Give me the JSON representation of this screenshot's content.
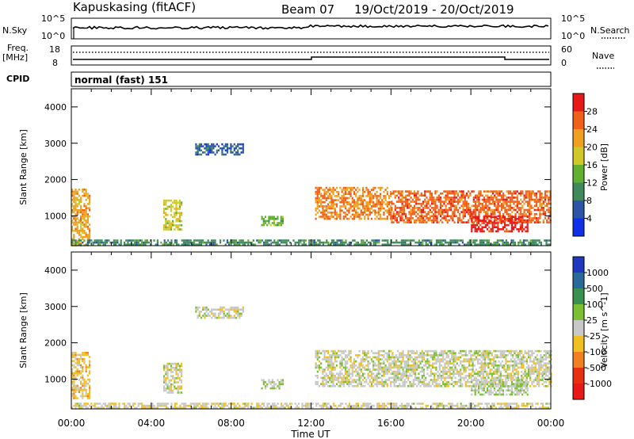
{
  "header": {
    "station": "Kapuskasing (fitACF)",
    "beam": "Beam 07",
    "date_range": "19/Oct/2019 - 20/Oct/2019"
  },
  "noise_panel": {
    "left_label": "N.Sky",
    "right_label": "N.Search",
    "left_tick_top": "10^5",
    "left_tick_bottom": "10^0",
    "right_tick_top": "10^5",
    "right_tick_bottom": "10^0"
  },
  "freq_panel": {
    "left_label_line1": "Freq.",
    "left_label_line2": "[MHz]",
    "right_label": "Nave",
    "left_tick_top": "18",
    "left_tick_bottom": "8",
    "right_tick_top": "60",
    "right_tick_bottom": "0"
  },
  "cpid_panel": {
    "label": "CPID",
    "text": "normal (fast) 151"
  },
  "x_axis": {
    "label": "Time UT",
    "ticks": [
      "00:00",
      "04:00",
      "08:00",
      "12:00",
      "16:00",
      "20:00",
      "00:00"
    ]
  },
  "colors": {
    "power_scale": [
      "#1030e8",
      "#2c55a8",
      "#3f8a5a",
      "#62b030",
      "#d0c828",
      "#f0a020",
      "#f06018",
      "#e81818"
    ],
    "velocity_scale": [
      "#2038c0",
      "#2a6a9a",
      "#3a9050",
      "#7ac030",
      "#c8c8c8",
      "#f0c020",
      "#f08020",
      "#e83010",
      "#e81818"
    ]
  },
  "chart_data": [
    {
      "type": "heatmap",
      "name": "power",
      "ylabel": "Slant Range [km]",
      "xlabel": "",
      "yticks": [
        "1000",
        "2000",
        "3000",
        "4000"
      ],
      "ylim": [
        180,
        4500
      ],
      "xlim": [
        0,
        24
      ],
      "colorbar": {
        "label": "Power [dB]",
        "ticks": [
          "4",
          "8",
          "12",
          "16",
          "20",
          "24",
          "28"
        ],
        "range": [
          0,
          32
        ]
      },
      "regions": [
        {
          "t0": 0.0,
          "t1": 0.9,
          "r0": 180,
          "r1": 1750,
          "value": 22
        },
        {
          "t0": 0.0,
          "t1": 24.0,
          "r0": 180,
          "r1": 350,
          "value": 10
        },
        {
          "t0": 4.6,
          "t1": 5.5,
          "r0": 650,
          "r1": 1450,
          "value": 18
        },
        {
          "t0": 6.2,
          "t1": 8.6,
          "r0": 2700,
          "r1": 3000,
          "value": 6
        },
        {
          "t0": 9.5,
          "t1": 10.6,
          "r0": 750,
          "r1": 1000,
          "value": 14
        },
        {
          "t0": 12.2,
          "t1": 16.0,
          "r0": 900,
          "r1": 1800,
          "value": 24
        },
        {
          "t0": 16.0,
          "t1": 24.0,
          "r0": 800,
          "r1": 1700,
          "value": 26
        },
        {
          "t0": 20.0,
          "t1": 22.8,
          "r0": 600,
          "r1": 1000,
          "value": 30
        }
      ]
    },
    {
      "type": "heatmap",
      "name": "velocity",
      "ylabel": "Slant Range [km]",
      "xlabel": "Time UT",
      "yticks": [
        "1000",
        "2000",
        "3000",
        "4000"
      ],
      "ylim": [
        180,
        4500
      ],
      "xlim": [
        0,
        24
      ],
      "colorbar": {
        "label": "Velocity [m s^-1]",
        "ticks": [
          "1000",
          "500",
          "100",
          "25",
          "-25",
          "-100",
          "-500",
          "-1000"
        ],
        "range": [
          -1000,
          1000
        ]
      },
      "regions": [
        {
          "t0": 0.0,
          "t1": 0.9,
          "r0": 500,
          "r1": 1750,
          "value": -200
        },
        {
          "t0": 0.0,
          "t1": 24.0,
          "r0": 180,
          "r1": 350,
          "value": -50
        },
        {
          "t0": 4.6,
          "t1": 5.5,
          "r0": 650,
          "r1": 1450,
          "value": 0
        },
        {
          "t0": 6.2,
          "t1": 8.6,
          "r0": 2700,
          "r1": 3000,
          "value": 0
        },
        {
          "t0": 9.5,
          "t1": 10.6,
          "r0": 750,
          "r1": 1000,
          "value": 80
        },
        {
          "t0": 12.2,
          "t1": 24.0,
          "r0": 800,
          "r1": 1800,
          "value": 0
        },
        {
          "t0": 20.0,
          "t1": 22.8,
          "r0": 600,
          "r1": 1000,
          "value": 80
        }
      ]
    }
  ]
}
